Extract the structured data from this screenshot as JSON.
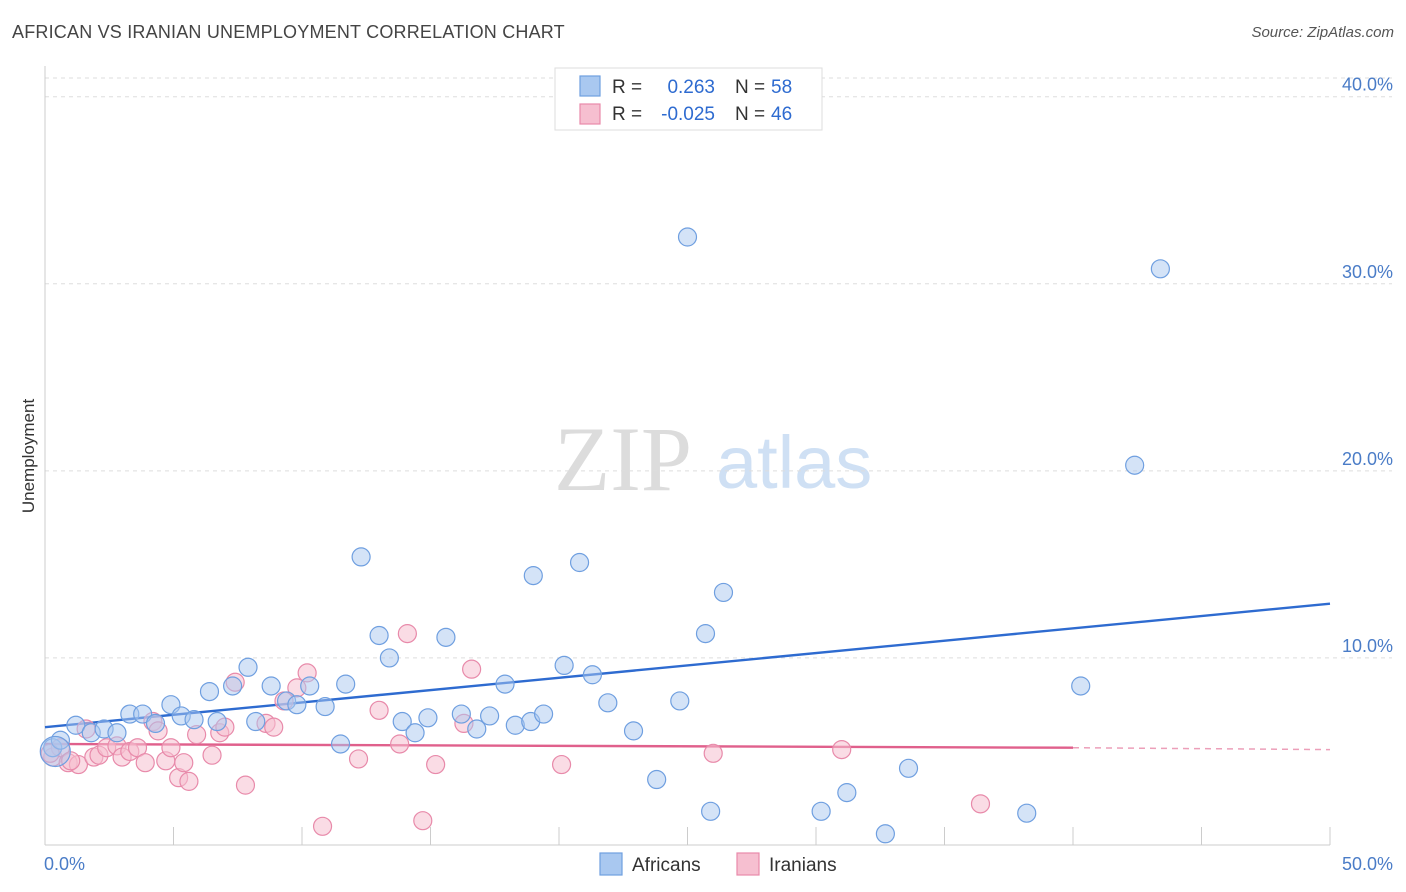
{
  "title": "AFRICAN VS IRANIAN UNEMPLOYMENT CORRELATION CHART",
  "source": "Source: ZipAtlas.com",
  "watermark": {
    "zip": "ZIP",
    "atlas": "atlas"
  },
  "colors": {
    "africans": "#6f9fe0",
    "africans_fill": "#a9c8f0",
    "africans_line": "#2e6bd0",
    "iranians": "#e88aaa",
    "iranians_fill": "#f6bfd0",
    "iranians_line": "#e0608c",
    "tick_label": "#4a7cc7",
    "grid": "#dddddd"
  },
  "legend": {
    "rows": [
      {
        "r_label": "R =",
        "r_value": "0.263",
        "n_label": "N =",
        "n_value": "58"
      },
      {
        "r_label": "R =",
        "r_value": "-0.025",
        "n_label": "N =",
        "n_value": "46"
      }
    ]
  },
  "chart_data": {
    "type": "scatter",
    "title": "AFRICAN VS IRANIAN UNEMPLOYMENT CORRELATION CHART",
    "xlabel": "",
    "ylabel": "Unemployment",
    "xlim": [
      0,
      50
    ],
    "ylim": [
      0,
      41
    ],
    "x_tick_labels": [
      "0.0%",
      "50.0%"
    ],
    "y_ticks": [
      10,
      20,
      30,
      40
    ],
    "y_tick_labels": [
      "10.0%",
      "20.0%",
      "30.0%",
      "40.0%"
    ],
    "grid": true,
    "legend_position": "bottom-center",
    "series": [
      {
        "name": "Africans",
        "r": 0.263,
        "n": 58,
        "trend": {
          "x": [
            0,
            50
          ],
          "y": [
            6.3,
            12.9
          ]
        },
        "points": [
          [
            0.3,
            5.2
          ],
          [
            0.6,
            5.6
          ],
          [
            1.2,
            6.4
          ],
          [
            1.8,
            6.0
          ],
          [
            2.3,
            6.2
          ],
          [
            2.8,
            6.0
          ],
          [
            3.3,
            7.0
          ],
          [
            3.8,
            7.0
          ],
          [
            4.3,
            6.5
          ],
          [
            4.9,
            7.5
          ],
          [
            5.3,
            6.9
          ],
          [
            5.8,
            6.7
          ],
          [
            6.4,
            8.2
          ],
          [
            6.7,
            6.6
          ],
          [
            7.3,
            8.5
          ],
          [
            7.9,
            9.5
          ],
          [
            8.2,
            6.6
          ],
          [
            8.8,
            8.5
          ],
          [
            9.4,
            7.7
          ],
          [
            9.8,
            7.5
          ],
          [
            10.3,
            8.5
          ],
          [
            10.9,
            7.4
          ],
          [
            11.5,
            5.4
          ],
          [
            11.7,
            8.6
          ],
          [
            12.3,
            15.4
          ],
          [
            13.0,
            11.2
          ],
          [
            13.4,
            10.0
          ],
          [
            13.9,
            6.6
          ],
          [
            14.4,
            6.0
          ],
          [
            14.9,
            6.8
          ],
          [
            15.6,
            11.1
          ],
          [
            16.2,
            7.0
          ],
          [
            16.8,
            6.2
          ],
          [
            17.3,
            6.9
          ],
          [
            17.9,
            8.6
          ],
          [
            18.3,
            6.4
          ],
          [
            18.9,
            6.6
          ],
          [
            19.4,
            7.0
          ],
          [
            19.0,
            14.4
          ],
          [
            20.2,
            9.6
          ],
          [
            20.8,
            15.1
          ],
          [
            21.3,
            9.1
          ],
          [
            21.9,
            7.6
          ],
          [
            22.9,
            6.1
          ],
          [
            23.8,
            3.5
          ],
          [
            24.7,
            7.7
          ],
          [
            25.0,
            32.5
          ],
          [
            25.7,
            11.3
          ],
          [
            25.9,
            1.8
          ],
          [
            26.4,
            13.5
          ],
          [
            30.2,
            1.8
          ],
          [
            31.2,
            2.8
          ],
          [
            32.7,
            0.6
          ],
          [
            33.6,
            4.1
          ],
          [
            38.2,
            1.7
          ],
          [
            40.3,
            8.5
          ],
          [
            42.4,
            20.3
          ],
          [
            43.4,
            30.8
          ]
        ]
      },
      {
        "name": "Iranians",
        "r": -0.025,
        "n": 46,
        "trend": {
          "x": [
            0,
            40
          ],
          "y": [
            5.4,
            5.2
          ]
        },
        "trend_dashed": {
          "x": [
            40,
            50
          ],
          "y": [
            5.2,
            5.1
          ]
        },
        "points": [
          [
            0.3,
            4.7
          ],
          [
            0.6,
            5.2
          ],
          [
            0.9,
            4.4
          ],
          [
            1.3,
            4.3
          ],
          [
            1.6,
            6.2
          ],
          [
            1.9,
            4.7
          ],
          [
            2.1,
            4.8
          ],
          [
            2.4,
            5.2
          ],
          [
            2.8,
            5.3
          ],
          [
            3.0,
            4.7
          ],
          [
            3.3,
            5.0
          ],
          [
            3.6,
            5.2
          ],
          [
            3.9,
            4.4
          ],
          [
            4.2,
            6.6
          ],
          [
            4.4,
            6.1
          ],
          [
            4.7,
            4.5
          ],
          [
            4.9,
            5.2
          ],
          [
            5.2,
            3.6
          ],
          [
            5.6,
            3.4
          ],
          [
            5.4,
            4.4
          ],
          [
            5.9,
            5.9
          ],
          [
            6.5,
            4.8
          ],
          [
            6.8,
            6.0
          ],
          [
            7.0,
            6.3
          ],
          [
            7.4,
            8.7
          ],
          [
            7.8,
            3.2
          ],
          [
            8.6,
            6.5
          ],
          [
            8.9,
            6.3
          ],
          [
            9.3,
            7.7
          ],
          [
            9.8,
            8.4
          ],
          [
            10.2,
            9.2
          ],
          [
            10.8,
            1.0
          ],
          [
            12.2,
            4.6
          ],
          [
            13.0,
            7.2
          ],
          [
            13.8,
            5.4
          ],
          [
            14.1,
            11.3
          ],
          [
            14.7,
            1.3
          ],
          [
            15.2,
            4.3
          ],
          [
            16.3,
            6.5
          ],
          [
            16.6,
            9.4
          ],
          [
            20.1,
            4.3
          ],
          [
            26.0,
            4.9
          ],
          [
            31.0,
            5.1
          ],
          [
            36.4,
            2.2
          ],
          [
            0.2,
            4.9
          ],
          [
            1.0,
            4.5
          ]
        ]
      }
    ]
  },
  "bottom_legend": [
    "Africans",
    "Iranians"
  ]
}
